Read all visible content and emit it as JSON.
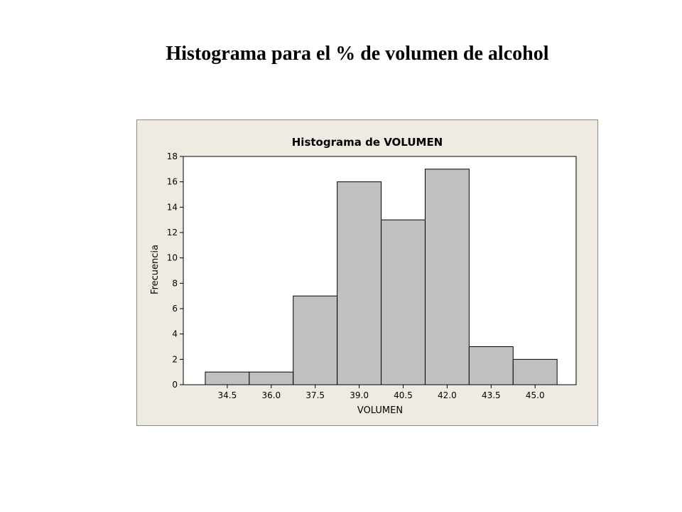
{
  "slide": {
    "title": "Histograma para el % de volumen de alcohol"
  },
  "colors": {
    "frame_background": "#EFEBE2",
    "plot_background": "#FFFFFF",
    "bar_fill": "#C0C0C0",
    "bar_stroke": "#000000",
    "axis": "#000000"
  },
  "chart_data": {
    "type": "bar",
    "title": "Histograma de VOLUMEN",
    "xlabel": "VOLUMEN",
    "ylabel": "Frecuencia",
    "bins": [
      {
        "center": 34.5,
        "frequency": 1
      },
      {
        "center": 36.0,
        "frequency": 1
      },
      {
        "center": 37.5,
        "frequency": 7
      },
      {
        "center": 39.0,
        "frequency": 16
      },
      {
        "center": 40.5,
        "frequency": 13
      },
      {
        "center": 42.0,
        "frequency": 17
      },
      {
        "center": 43.5,
        "frequency": 3
      },
      {
        "center": 45.0,
        "frequency": 2
      }
    ],
    "bin_width": 1.5,
    "categories": [
      "34.5",
      "36.0",
      "37.5",
      "39.0",
      "40.5",
      "42.0",
      "43.5",
      "45.0"
    ],
    "values": [
      1,
      1,
      7,
      16,
      13,
      17,
      3,
      2
    ],
    "xlim": [
      33.0,
      46.4
    ],
    "ylim": [
      0,
      18
    ],
    "y_ticks": [
      "0",
      "2",
      "4",
      "6",
      "8",
      "10",
      "12",
      "14",
      "16",
      "18"
    ],
    "grid": false,
    "legend": "none"
  }
}
